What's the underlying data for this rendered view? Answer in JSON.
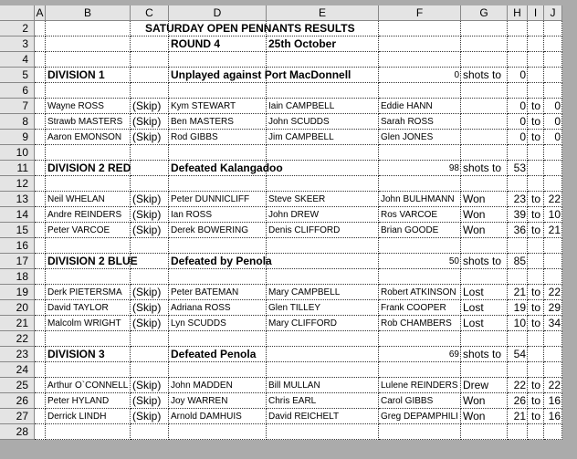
{
  "columns": [
    "A",
    "B",
    "C",
    "D",
    "E",
    "F",
    "G",
    "H",
    "I",
    "J"
  ],
  "rows": [
    {
      "n": 2,
      "cells": {
        "C": "SATURDAY OPEN PENNANTS RESULTS"
      }
    },
    {
      "n": 3,
      "cells": {
        "D": "ROUND 4",
        "E": "25th October"
      }
    },
    {
      "n": 4,
      "cells": {}
    },
    {
      "n": 5,
      "cells": {
        "B": "DIVISION 1",
        "D": "Unplayed against Port MacDonnell",
        "F": 0,
        "G": "shots to",
        "H": 0
      }
    },
    {
      "n": 6,
      "cells": {}
    },
    {
      "n": 7,
      "cells": {
        "B": "Wayne ROSS",
        "C": "(Skip)",
        "D": "Kym STEWART",
        "E": "Iain CAMPBELL",
        "F": "Eddie HANN",
        "H": 0,
        "I": "to",
        "J": 0
      }
    },
    {
      "n": 8,
      "cells": {
        "B": "Strawb MASTERS",
        "C": "(Skip)",
        "D": "Ben MASTERS",
        "E": "John SCUDDS",
        "F": "Sarah ROSS",
        "H": 0,
        "I": "to",
        "J": 0
      }
    },
    {
      "n": 9,
      "cells": {
        "B": "Aaron EMONSON",
        "C": "(Skip)",
        "D": "Rod GIBBS",
        "E": "Jim CAMPBELL",
        "F": "Glen JONES",
        "H": 0,
        "I": "to",
        "J": 0
      }
    },
    {
      "n": 10,
      "cells": {}
    },
    {
      "n": 11,
      "cells": {
        "B": "DIVISION 2 RED",
        "D": "Defeated Kalangadoo",
        "F": 98,
        "G": "shots to",
        "H": 53
      }
    },
    {
      "n": 12,
      "cells": {}
    },
    {
      "n": 13,
      "cells": {
        "B": "Neil WHELAN",
        "C": "(Skip)",
        "D": "Peter DUNNICLIFF",
        "E": "Steve SKEER",
        "F": "John BULHMANN",
        "G": "Won",
        "H": 23,
        "I": "to",
        "J": 22
      }
    },
    {
      "n": 14,
      "cells": {
        "B": "Andre REINDERS",
        "C": "(Skip)",
        "D": "Ian ROSS",
        "E": "John DREW",
        "F": "Ros VARCOE",
        "G": "Won",
        "H": 39,
        "I": "to",
        "J": 10
      }
    },
    {
      "n": 15,
      "cells": {
        "B": "Peter VARCOE",
        "C": "(Skip)",
        "D": "Derek BOWERING",
        "E": "Denis CLIFFORD",
        "F": "Brian GOODE",
        "G": "Won",
        "H": 36,
        "I": "to",
        "J": 21
      }
    },
    {
      "n": 16,
      "cells": {}
    },
    {
      "n": 17,
      "cells": {
        "B": "DIVISION 2 BLUE",
        "D": "Defeated by Penola",
        "F": 50,
        "G": "shots to",
        "H": 85
      }
    },
    {
      "n": 18,
      "cells": {}
    },
    {
      "n": 19,
      "cells": {
        "B": "Derk PIETERSMA",
        "C": "(Skip)",
        "D": "Peter BATEMAN",
        "E": "Mary CAMPBELL",
        "F": "Robert ATKINSON",
        "G": "Lost",
        "H": 21,
        "I": "to",
        "J": 22
      }
    },
    {
      "n": 20,
      "cells": {
        "B": "David TAYLOR",
        "C": "(Skip)",
        "D": "Adriana ROSS",
        "E": "Glen TILLEY",
        "F": "Frank COOPER",
        "G": "Lost",
        "H": 19,
        "I": "to",
        "J": 29
      }
    },
    {
      "n": 21,
      "cells": {
        "B": "Malcolm WRIGHT",
        "C": "(Skip)",
        "D": "Lyn SCUDDS",
        "E": "Mary CLIFFORD",
        "F": "Rob CHAMBERS",
        "G": "Lost",
        "H": 10,
        "I": "to",
        "J": 34
      }
    },
    {
      "n": 22,
      "cells": {}
    },
    {
      "n": 23,
      "cells": {
        "B": "DIVISION 3",
        "D": "Defeated Penola",
        "F": 69,
        "G": "shots to",
        "H": 54
      }
    },
    {
      "n": 24,
      "cells": {}
    },
    {
      "n": 25,
      "cells": {
        "B": "Arthur O`CONNELL",
        "C": "(Skip)",
        "D": "John MADDEN",
        "E": "Bill MULLAN",
        "F": "Lulene REINDERS",
        "G": "Drew",
        "H": 22,
        "I": "to",
        "J": 22
      }
    },
    {
      "n": 26,
      "cells": {
        "B": "Peter HYLAND",
        "C": "(Skip)",
        "D": "Joy WARREN",
        "E": "Chris EARL",
        "F": "Carol GIBBS",
        "G": "Won",
        "H": 26,
        "I": "to",
        "J": 16
      }
    },
    {
      "n": 27,
      "cells": {
        "B": "Derrick LINDH",
        "C": "(Skip)",
        "D": "Arnold DAMHUIS",
        "E": "David REICHELT",
        "F": "Greg DEPAMPHILI",
        "G": "Won",
        "H": 21,
        "I": "to",
        "J": 16
      }
    },
    {
      "n": 28,
      "cells": {}
    }
  ]
}
